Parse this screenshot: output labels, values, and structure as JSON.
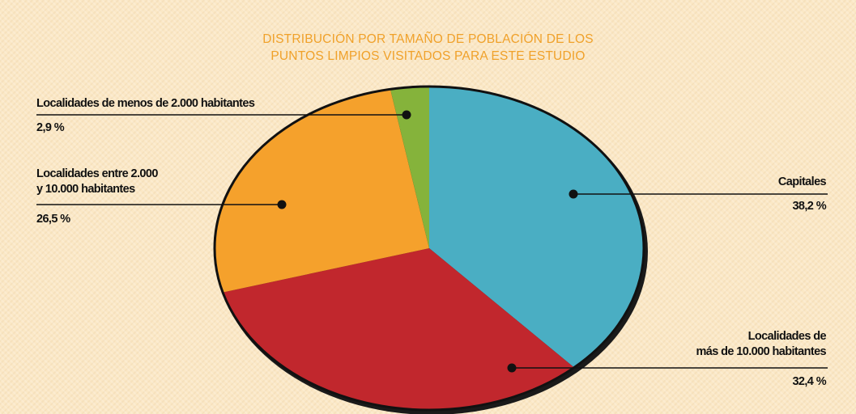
{
  "chart_data": {
    "type": "pie",
    "title": "DISTRIBUCIÓN POR TAMAÑO DE POBLACIÓN DE LOS\nPUNTOS LIMPIOS VISITADOS PARA ESTE ESTUDIO",
    "categories": [
      "Capitales",
      "Localidades de\nmás de 10.000 habitantes",
      "Localidades entre 2.000\ny 10.000 habitantes",
      "Localidades de menos de 2.000 habitantes"
    ],
    "values": [
      38.2,
      32.4,
      26.5,
      2.9
    ],
    "value_labels": [
      "38,2 %",
      "32,4 %",
      "26,5 %",
      "2,9 %"
    ],
    "colors": [
      "#4aaec3",
      "#c1272d",
      "#f5a12c",
      "#85b33b"
    ]
  }
}
